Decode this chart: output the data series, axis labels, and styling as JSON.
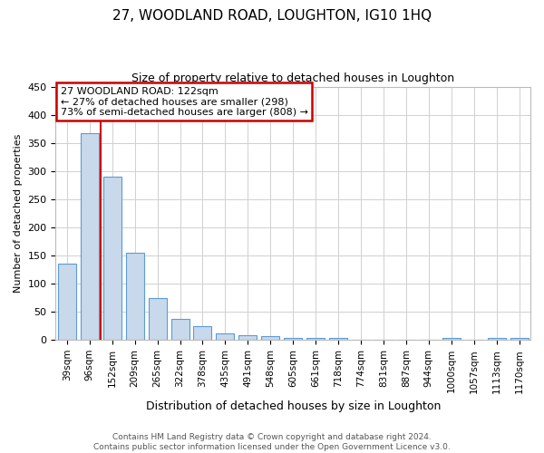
{
  "title": "27, WOODLAND ROAD, LOUGHTON, IG10 1HQ",
  "subtitle": "Size of property relative to detached houses in Loughton",
  "xlabel": "Distribution of detached houses by size in Loughton",
  "ylabel": "Number of detached properties",
  "categories": [
    "39sqm",
    "96sqm",
    "152sqm",
    "209sqm",
    "265sqm",
    "322sqm",
    "378sqm",
    "435sqm",
    "491sqm",
    "548sqm",
    "605sqm",
    "661sqm",
    "718sqm",
    "774sqm",
    "831sqm",
    "887sqm",
    "944sqm",
    "1000sqm",
    "1057sqm",
    "1113sqm",
    "1170sqm"
  ],
  "values": [
    135,
    368,
    290,
    155,
    75,
    38,
    25,
    11,
    8,
    6,
    4,
    4,
    3,
    0,
    0,
    0,
    0,
    3,
    0,
    3,
    3
  ],
  "bar_color": "#c9d9ec",
  "bar_edge_color": "#5b9bd5",
  "red_line_x": 1.5,
  "annotation_text": "27 WOODLAND ROAD: 122sqm\n← 27% of detached houses are smaller (298)\n73% of semi-detached houses are larger (808) →",
  "annotation_box_color": "#ffffff",
  "annotation_box_edge_color": "#cc0000",
  "footer1": "Contains HM Land Registry data © Crown copyright and database right 2024.",
  "footer2": "Contains public sector information licensed under the Open Government Licence v3.0.",
  "ylim": [
    0,
    450
  ],
  "background_color": "#ffffff",
  "grid_color": "#d0d0d0",
  "title_fontsize": 11,
  "subtitle_fontsize": 9,
  "xlabel_fontsize": 9,
  "ylabel_fontsize": 8,
  "tick_fontsize": 7.5,
  "footer_fontsize": 6.5,
  "annotation_fontsize": 8
}
